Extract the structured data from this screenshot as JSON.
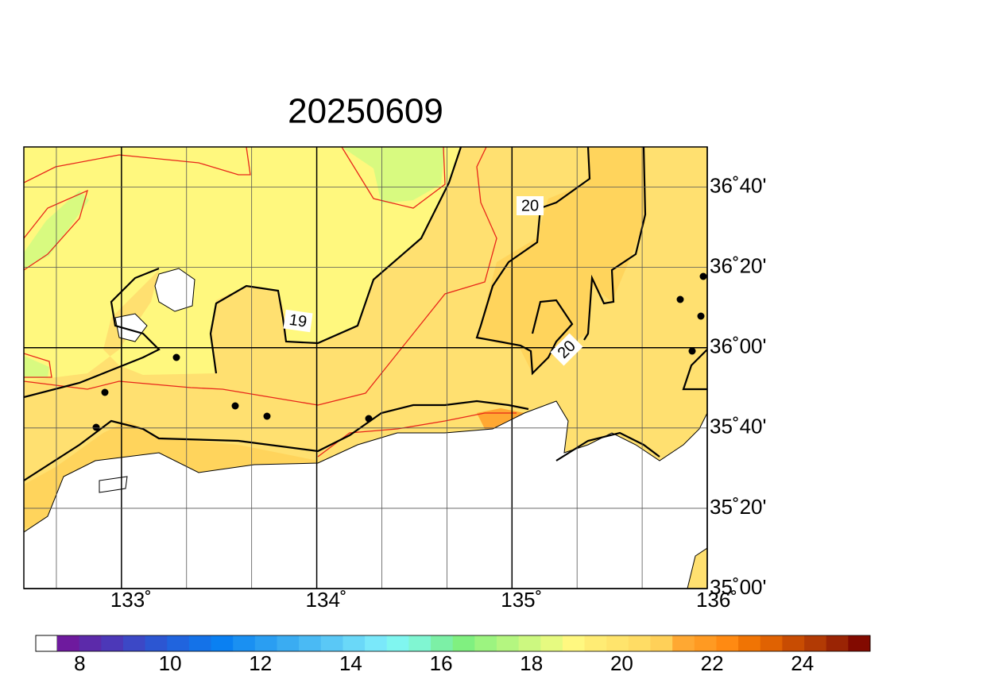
{
  "map": {
    "title": "20250609",
    "xlim": [
      132.5,
      136
    ],
    "ylim": [
      35,
      36.8333
    ],
    "xticks": [
      {
        "value": 133,
        "label": "133˚"
      },
      {
        "value": 134,
        "label": "134˚"
      },
      {
        "value": 135,
        "label": "135˚"
      },
      {
        "value": 136,
        "label": "136˚"
      }
    ],
    "yticks": [
      {
        "value": 35,
        "label": "35˚00'"
      },
      {
        "value": 35.3333,
        "label": "35˚20'"
      },
      {
        "value": 35.6667,
        "label": "35˚40'"
      },
      {
        "value": 36,
        "label": "36˚00'"
      },
      {
        "value": 36.3333,
        "label": "36˚20'"
      },
      {
        "value": 36.6667,
        "label": "36˚40'"
      }
    ],
    "xminor": [
      132.6667,
      133.3333,
      133.6667,
      134.3333,
      134.6667,
      135.3333,
      135.6667
    ],
    "contour_labels": [
      "20",
      "19",
      "20"
    ]
  },
  "colorbar": {
    "range": [
      7.5,
      25.5
    ],
    "ticks": [
      8,
      10,
      12,
      14,
      16,
      18,
      20,
      22,
      24
    ],
    "colors": [
      "#6e1a9e",
      "#5c2aaa",
      "#4c38b8",
      "#3c48c6",
      "#2c56d2",
      "#2064de",
      "#1472e8",
      "#0a80f2",
      "#1a90f2",
      "#2a9ef2",
      "#3aacf2",
      "#4abaf4",
      "#5ac8f6",
      "#6ad8f8",
      "#7ae8fa",
      "#80f6f0",
      "#80f6d2",
      "#7cf0a6",
      "#80f080",
      "#9cf480",
      "#b4f680",
      "#ccf880",
      "#e6fa80",
      "#fff880",
      "#ffec74",
      "#ffe46c",
      "#ffdc64",
      "#ffd058",
      "#ffa832",
      "#ff9a22",
      "#ff8a12",
      "#f07404",
      "#e06202",
      "#c84c02",
      "#b23a04",
      "#9a2404",
      "#820a00"
    ]
  }
}
